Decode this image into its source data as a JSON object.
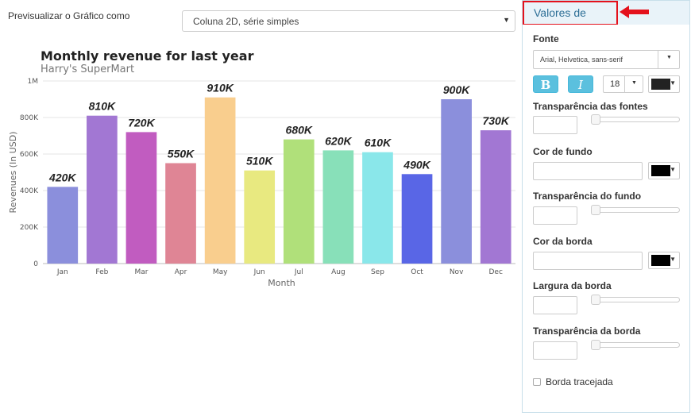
{
  "toolbar": {
    "preview_label": "Previsualizar o Gráfico como",
    "chart_type_value": "Coluna 2D, série simples"
  },
  "chart_data": {
    "type": "bar",
    "title": "Monthly revenue for last year",
    "subtitle": "Harry's SuperMart",
    "xlabel": "Month",
    "ylabel": "Revenues (In USD)",
    "ylim": [
      0,
      1000000
    ],
    "yticks": [
      "0",
      "200K",
      "400K",
      "600K",
      "800K",
      "1M"
    ],
    "categories": [
      "Jan",
      "Feb",
      "Mar",
      "Apr",
      "May",
      "Jun",
      "Jul",
      "Aug",
      "Sep",
      "Oct",
      "Nov",
      "Dec"
    ],
    "values": [
      420000,
      810000,
      720000,
      550000,
      910000,
      510000,
      680000,
      620000,
      610000,
      490000,
      900000,
      730000
    ],
    "data_labels": [
      "420K",
      "810K",
      "720K",
      "550K",
      "910K",
      "510K",
      "680K",
      "620K",
      "610K",
      "490K",
      "900K",
      "730K"
    ],
    "colors": [
      "#8b8fdc",
      "#a277d3",
      "#c15cc0",
      "#df8595",
      "#f9ce8e",
      "#e8e980",
      "#b0e07a",
      "#88e0b9",
      "#8ae7ea",
      "#5966e6",
      "#8b8fdc",
      "#a277d3"
    ],
    "grid": true
  },
  "panel": {
    "tab_label": "Valores de dados",
    "font_label": "Fonte",
    "font_value": "Arial, Helvetica, sans-serif",
    "bold_label": "B",
    "italic_label": "I",
    "font_size": "18",
    "font_color": "#222222",
    "font_transparency_label": "Transparência das fontes",
    "bg_color_label": "Cor de fundo",
    "bg_color": "#000000",
    "bg_transparency_label": "Transparência do fundo",
    "border_color_label": "Cor da borda",
    "border_color": "#000000",
    "border_width_label": "Largura da borda",
    "border_transparency_label": "Transparência da borda",
    "dashed_border_label": "Borda tracejada",
    "accent_color": "#e4111c"
  }
}
